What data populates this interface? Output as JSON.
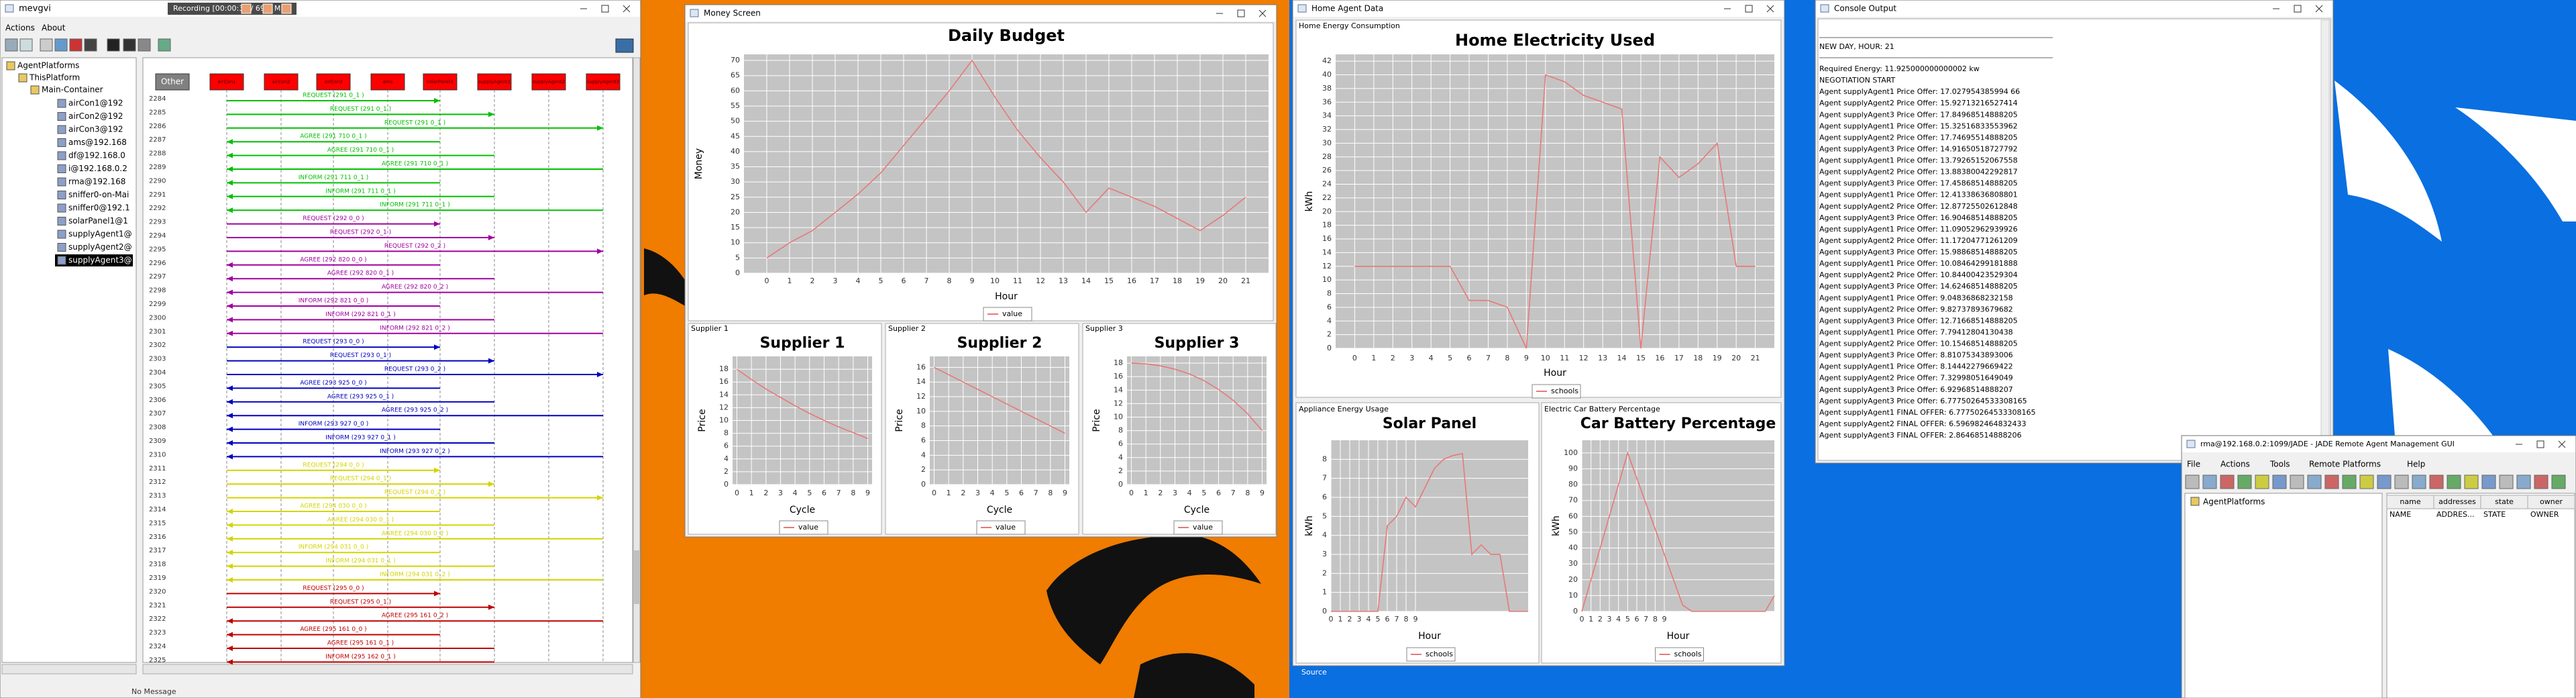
{
  "sniffer": {
    "title": "mevgvi",
    "recording": "Recording [00:00:39 / 69.7 MB]",
    "menu": [
      "Actions",
      "About"
    ],
    "tree": {
      "root": "AgentPlatforms",
      "platform": "ThisPlatform",
      "container": "Main-Container",
      "agents": [
        "airCon1@192",
        "airCon2@192",
        "airCon3@192",
        "ams@192.168",
        "df@192.168.0",
        "i@192.168.0.2",
        "rma@192.168",
        "sniffer0-on-Mai",
        "sniffer0@192.1",
        "solarPanel1@1",
        "supplyAgent1@",
        "supplyAgent2@",
        "supplyAgent3@"
      ]
    },
    "agents": [
      "Other",
      "airCon1",
      "airCon2",
      "airCon3",
      "ams",
      "solarPanel1",
      "supplyAgent1",
      "supplyAgent2",
      "supplyAgent3"
    ],
    "groups": [
      {
        "color": "#00c000",
        "messages": [
          {
            "n": 2284,
            "label": "REQUEST (291 0_1 )",
            "from": 1,
            "to": 5
          },
          {
            "n": 2285,
            "label": "REQUEST (291 0_1 )",
            "from": 1,
            "to": 6
          },
          {
            "n": 2286,
            "label": "REQUEST (291 0_1 )",
            "from": 1,
            "to": 8
          },
          {
            "n": 2287,
            "label": "AGREE (291 710 0_1 )",
            "from": 5,
            "to": 1
          },
          {
            "n": 2288,
            "label": "AGREE (291 710 0_1 )",
            "from": 6,
            "to": 1
          },
          {
            "n": 2289,
            "label": "AGREE (291 710 0_1 )",
            "from": 8,
            "to": 1
          },
          {
            "n": 2290,
            "label": "INFORM (291 711 0_1 )",
            "from": 5,
            "to": 1
          },
          {
            "n": 2291,
            "label": "INFORM (291 711 0_1 )",
            "from": 6,
            "to": 1
          },
          {
            "n": 2292,
            "label": "INFORM (291 711 0_1 )",
            "from": 8,
            "to": 1
          }
        ]
      },
      {
        "color": "#a000a0",
        "messages": [
          {
            "n": 2293,
            "label": "REQUEST (292 0_0 )",
            "from": 1,
            "to": 5
          },
          {
            "n": 2294,
            "label": "REQUEST (292 0_1 )",
            "from": 1,
            "to": 6
          },
          {
            "n": 2295,
            "label": "REQUEST (292 0_2 )",
            "from": 1,
            "to": 8
          },
          {
            "n": 2296,
            "label": "AGREE (292 820 0_0 )",
            "from": 5,
            "to": 1
          },
          {
            "n": 2297,
            "label": "AGREE (292 820 0_1 )",
            "from": 6,
            "to": 1
          },
          {
            "n": 2298,
            "label": "AGREE (292 820 0_2 )",
            "from": 8,
            "to": 1
          },
          {
            "n": 2299,
            "label": "INFORM (292 821 0_0 )",
            "from": 5,
            "to": 1
          },
          {
            "n": 2300,
            "label": "INFORM (292 821 0_1 )",
            "from": 6,
            "to": 1
          },
          {
            "n": 2301,
            "label": "INFORM (292 821 0_2 )",
            "from": 8,
            "to": 1
          }
        ]
      },
      {
        "color": "#0000c0",
        "messages": [
          {
            "n": 2302,
            "label": "REQUEST (293 0_0 )",
            "from": 1,
            "to": 5
          },
          {
            "n": 2303,
            "label": "REQUEST (293 0_1 )",
            "from": 1,
            "to": 6
          },
          {
            "n": 2304,
            "label": "REQUEST (293 0_2 )",
            "from": 1,
            "to": 8
          },
          {
            "n": 2305,
            "label": "AGREE (293 925 0_0 )",
            "from": 5,
            "to": 1
          },
          {
            "n": 2306,
            "label": "AGREE (293 925 0_1 )",
            "from": 6,
            "to": 1
          },
          {
            "n": 2307,
            "label": "AGREE (293 925 0_2 )",
            "from": 8,
            "to": 1
          },
          {
            "n": 2308,
            "label": "INFORM (293 927 0_0 )",
            "from": 5,
            "to": 1
          },
          {
            "n": 2309,
            "label": "INFORM (293 927 0_1 )",
            "from": 6,
            "to": 1
          },
          {
            "n": 2310,
            "label": "INFORM (293 927 0_2 )",
            "from": 8,
            "to": 1
          }
        ]
      },
      {
        "color": "#d4d400",
        "messages": [
          {
            "n": 2311,
            "label": "REQUEST (294 0_0 )",
            "from": 1,
            "to": 5
          },
          {
            "n": 2312,
            "label": "REQUEST (294 0_1 )",
            "from": 1,
            "to": 6
          },
          {
            "n": 2313,
            "label": "REQUEST (294 0_2 )",
            "from": 1,
            "to": 8
          },
          {
            "n": 2314,
            "label": "AGREE (294 030 0_0 )",
            "from": 5,
            "to": 1
          },
          {
            "n": 2315,
            "label": "AGREE (294 030 0_1 )",
            "from": 6,
            "to": 1
          },
          {
            "n": 2316,
            "label": "AGREE (294 030 0_2 )",
            "from": 8,
            "to": 1
          },
          {
            "n": 2317,
            "label": "INFORM (294 031 0_0 )",
            "from": 5,
            "to": 1
          },
          {
            "n": 2318,
            "label": "INFORM (294 031 0_1 )",
            "from": 6,
            "to": 1
          },
          {
            "n": 2319,
            "label": "INFORM (294 031 0_2 )",
            "from": 8,
            "to": 1
          }
        ]
      },
      {
        "color": "#c00000",
        "messages": [
          {
            "n": 2320,
            "label": "REQUEST (295 0_0 )",
            "from": 1,
            "to": 5
          },
          {
            "n": 2321,
            "label": "REQUEST (295 0_1 )",
            "from": 1,
            "to": 6
          },
          {
            "n": 2322,
            "label": "AGREE (295 161 0_2 )",
            "from": 8,
            "to": 1
          },
          {
            "n": 2323,
            "label": "AGREE (295 161 0_0 )",
            "from": 5,
            "to": 1
          },
          {
            "n": 2324,
            "label": "AGREE (295 161 0_1 )",
            "from": 6,
            "to": 1
          },
          {
            "n": 2325,
            "label": "INFORM (295 162 0_1 )",
            "from": 6,
            "to": 1
          }
        ]
      }
    ],
    "status": "No Message"
  },
  "money_screen": {
    "title": "Money Screen",
    "panels": [
      "Supplier 1",
      "Supplier 2",
      "Supplier 3"
    ]
  },
  "home_agent": {
    "title": "Home Agent Data",
    "panels": [
      "Home Energy Consumption",
      "Appliance Energy Usage",
      "Electric Car Battery Percentage"
    ],
    "footer": "Source"
  },
  "console": {
    "title": "Console Output",
    "lines": [
      "NEW DAY, HOUR: 21",
      "Required Energy: 11.925000000000002 kw",
      "NEGOTIATION START",
      "Agent supplyAgent1 Price Offer: 17.027954385994 66",
      "Agent supplyAgent2 Price Offer: 15.92713216527414",
      "Agent supplyAgent3 Price Offer: 17.84968514888205",
      "Agent supplyAgent1 Price Offer: 15.32516833553962",
      "Agent supplyAgent2 Price Offer: 17.74695514888205",
      "Agent supplyAgent3 Price Offer: 14.91650518727792",
      "Agent supplyAgent1 Price Offer: 13.79265152067558",
      "Agent supplyAgent2 Price Offer: 13.88380042292817",
      "Agent supplyAgent3 Price Offer: 17.45868514888205",
      "Agent supplyAgent1 Price Offer: 12.41338636808801",
      "Agent supplyAgent2 Price Offer: 12.87725502612848",
      "Agent supplyAgent3 Price Offer: 16.90468514888205",
      "Agent supplyAgent1 Price Offer: 11.09052962939926",
      "Agent supplyAgent2 Price Offer: 11.17204771261209",
      "Agent supplyAgent3 Price Offer: 15.98868514888205",
      "Agent supplyAgent1 Price Offer: 10.08464299181888",
      "Agent supplyAgent2 Price Offer: 10.84400423529304",
      "Agent supplyAgent3 Price Offer: 14.62468514888205",
      "Agent supplyAgent1 Price Offer: 9.04836868232158",
      "Agent supplyAgent2 Price Offer: 9.82737893679682",
      "Agent supplyAgent3 Price Offer: 12.71668514888205",
      "Agent supplyAgent1 Price Offer: 7.79412804130438",
      "Agent supplyAgent2 Price Offer: 10.15468514888205",
      "Agent supplyAgent3 Price Offer: 8.81075343893006",
      "Agent supplyAgent1 Price Offer: 8.14442279669422",
      "Agent supplyAgent2 Price Offer: 7.32998051649049",
      "Agent supplyAgent3 Price Offer: 6.92968514888207",
      "Agent supplyAgent3 Price Offer: 6.77750264533308165",
      "Agent supplyAgent1 FINAL OFFER: 6.77750264533308165",
      "Agent supplyAgent2 FINAL OFFER: 6.596982464832433",
      "Agent supplyAgent3 FINAL OFFER: 2.86468514888206"
    ]
  },
  "rma": {
    "title": "rma@192.168.0.2:1099/JADE - JADE Remote Agent Management GUI",
    "menu": [
      "File",
      "Actions",
      "Tools",
      "Remote Platforms",
      "Help"
    ],
    "tree": "AgentPlatforms",
    "columns": [
      "name",
      "addresses",
      "state",
      "owner"
    ],
    "row": [
      "NAME",
      "ADDRES...",
      "STATE",
      "OWNER"
    ]
  },
  "charts": [
    {
      "type": "line",
      "title": "Daily Budget",
      "xlabel": "Hour",
      "ylabel": "Money",
      "x": [
        0,
        1,
        2,
        3,
        4,
        5,
        6,
        7,
        8,
        9,
        10,
        11,
        12,
        13,
        14,
        15,
        16,
        17,
        18,
        19,
        20,
        21
      ],
      "series": [
        {
          "name": "value",
          "color": "#e87878",
          "values": [
            5,
            10,
            14,
            20,
            26,
            33,
            42,
            51,
            60,
            70,
            58,
            47,
            38,
            30,
            20,
            28,
            25,
            22,
            18,
            14,
            19,
            25
          ]
        }
      ],
      "xlim": [
        -1,
        22
      ],
      "ylim": [
        0,
        72
      ],
      "xticks": [
        0,
        1,
        2,
        3,
        4,
        5,
        6,
        7,
        8,
        9,
        10,
        11,
        12,
        13,
        14,
        15,
        16,
        17,
        18,
        19,
        20,
        21
      ],
      "yticks": [
        0,
        5,
        10,
        15,
        20,
        25,
        30,
        35,
        40,
        45,
        50,
        55,
        60,
        65,
        70
      ],
      "grid": true
    },
    {
      "type": "line",
      "title": "Supplier 1",
      "xlabel": "Cycle",
      "ylabel": "Price",
      "x": [
        0,
        1,
        2,
        3,
        4,
        5,
        6,
        7,
        8,
        9
      ],
      "series": [
        {
          "name": "value",
          "color": "#e87878",
          "values": [
            18,
            16.4,
            14.9,
            13.6,
            12.3,
            11.1,
            10,
            9,
            8.1,
            7.2
          ]
        }
      ],
      "xlim": [
        -0.3,
        9.3
      ],
      "ylim": [
        0,
        20
      ],
      "xticks": [
        0,
        1,
        2,
        3,
        4,
        5,
        6,
        7,
        8,
        9
      ],
      "yticks": [
        0,
        2,
        4,
        6,
        8,
        10,
        12,
        14,
        16,
        18
      ],
      "grid": true
    },
    {
      "type": "line",
      "title": "Supplier 2",
      "xlabel": "Cycle",
      "ylabel": "Price",
      "x": [
        0,
        1,
        2,
        3,
        4,
        5,
        6,
        7,
        8,
        9
      ],
      "series": [
        {
          "name": "value",
          "color": "#e87878",
          "values": [
            16,
            15,
            14,
            13,
            12,
            11,
            10,
            9,
            8,
            7
          ]
        }
      ],
      "xlim": [
        -0.3,
        9.3
      ],
      "ylim": [
        0,
        17.5
      ],
      "xticks": [
        0,
        1,
        2,
        3,
        4,
        5,
        6,
        7,
        8,
        9
      ],
      "yticks": [
        0,
        2,
        4,
        6,
        8,
        10,
        12,
        14,
        16
      ],
      "grid": true
    },
    {
      "type": "line",
      "title": "Supplier 3",
      "xlabel": "Cycle",
      "ylabel": "Price",
      "x": [
        0,
        1,
        2,
        3,
        4,
        5,
        6,
        7,
        8,
        9
      ],
      "series": [
        {
          "name": "value",
          "color": "#e87878",
          "values": [
            18,
            17.9,
            17.6,
            17.1,
            16.4,
            15.4,
            14.1,
            12.5,
            10.5,
            8
          ]
        }
      ],
      "xlim": [
        -0.3,
        9.3
      ],
      "ylim": [
        0,
        19
      ],
      "xticks": [
        0,
        1,
        2,
        3,
        4,
        5,
        6,
        7,
        8,
        9
      ],
      "yticks": [
        0,
        2,
        4,
        6,
        8,
        10,
        12,
        14,
        16,
        18
      ],
      "grid": true
    },
    {
      "type": "line",
      "title": "Home Electricity Used",
      "xlabel": "Hour",
      "ylabel": "kWh",
      "x": [
        0,
        1,
        2,
        3,
        4,
        5,
        6,
        7,
        8,
        9,
        10,
        11,
        12,
        13,
        14,
        15,
        16,
        17,
        18,
        19,
        20,
        21
      ],
      "series": [
        {
          "name": "schools",
          "color": "#e87878",
          "values": [
            12,
            12,
            12,
            12,
            12,
            12,
            7,
            7,
            6,
            0,
            40,
            39,
            37,
            36,
            35,
            0,
            28,
            25,
            27,
            30,
            12,
            12
          ]
        }
      ],
      "xlim": [
        -1,
        22
      ],
      "ylim": [
        0,
        43
      ],
      "xticks": [
        0,
        1,
        2,
        3,
        4,
        5,
        6,
        7,
        8,
        9,
        10,
        11,
        12,
        13,
        14,
        15,
        16,
        17,
        18,
        19,
        20,
        21
      ],
      "yticks": [
        0,
        2,
        4,
        6,
        8,
        10,
        12,
        14,
        16,
        18,
        20,
        22,
        24,
        26,
        28,
        30,
        32,
        34,
        36,
        38,
        40,
        42
      ],
      "grid": true
    },
    {
      "type": "line",
      "title": "Solar Panel",
      "xlabel": "Hour",
      "ylabel": "kWh",
      "x": [
        0,
        1,
        2,
        3,
        4,
        5,
        6,
        7,
        8,
        9,
        10,
        11,
        12,
        13,
        14,
        15,
        16,
        17,
        18,
        19,
        20,
        21
      ],
      "series": [
        {
          "name": "schools",
          "color": "#e87878",
          "values": [
            0,
            0,
            0,
            0,
            0,
            0,
            4.5,
            5,
            6,
            5.5,
            6.5,
            7.5,
            8,
            8.2,
            8.3,
            3,
            3.5,
            3,
            3,
            0,
            0,
            0
          ]
        }
      ],
      "xlim": [
        0,
        21
      ],
      "ylim": [
        0,
        9
      ],
      "xticks": [
        0,
        1,
        2,
        3,
        4,
        5,
        6,
        7,
        8,
        9
      ],
      "yticks": [
        0,
        1,
        2,
        3,
        4,
        5,
        6,
        7,
        8
      ],
      "grid": true
    },
    {
      "type": "line",
      "title": "Car Battery Percentage",
      "xlabel": "Hour",
      "ylabel": "kWh",
      "x": [
        0,
        1,
        2,
        3,
        4,
        5,
        6,
        7,
        8,
        9,
        10,
        11,
        12,
        13,
        14,
        15,
        16,
        17,
        18,
        19,
        20,
        21
      ],
      "series": [
        {
          "name": "schools",
          "color": "#e87878",
          "values": [
            0,
            20,
            40,
            60,
            80,
            100,
            84,
            68,
            52,
            36,
            20,
            4,
            0,
            0,
            0,
            0,
            0,
            0,
            0,
            0,
            0,
            10
          ]
        }
      ],
      "xlim": [
        0,
        21
      ],
      "ylim": [
        0,
        108
      ],
      "xticks": [
        0,
        1,
        2,
        3,
        4,
        5,
        6,
        7,
        8,
        9
      ],
      "yticks": [
        0,
        10,
        20,
        30,
        40,
        50,
        60,
        70,
        80,
        90,
        100
      ],
      "grid": true
    }
  ]
}
